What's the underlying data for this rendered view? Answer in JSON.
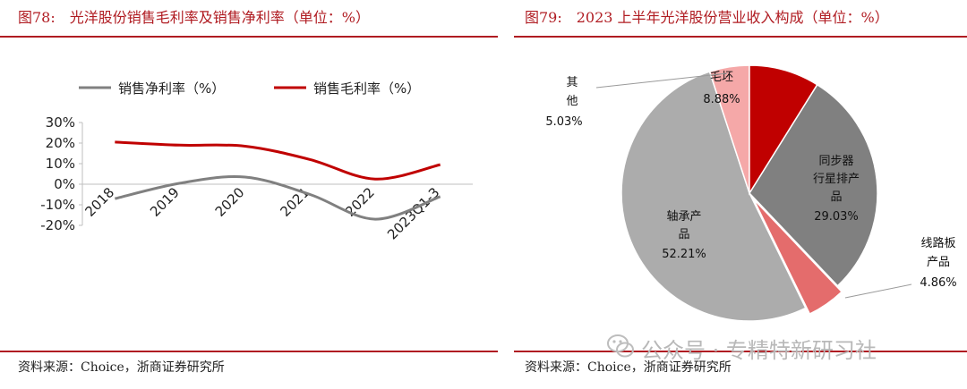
{
  "left": {
    "title": "图78:　光洋股份销售毛利率及销售净利率（单位：%）",
    "source": "资料来源：Choice，浙商证券研究所"
  },
  "right": {
    "title": "图79:　2023 上半年光洋股份营业收入构成（单位：%）",
    "source": "资料来源：Choice，浙商证券研究所"
  },
  "watermark": "公众号 · 专精特新研习社",
  "colors": {
    "accent": "#b01c22",
    "net": "#808080",
    "gross": "#c00000"
  },
  "chart_data": [
    {
      "type": "line",
      "categories": [
        "2018",
        "2019",
        "2020",
        "2021",
        "2022",
        "2023Q1-3"
      ],
      "series": [
        {
          "name": "销售净利率（%）",
          "values": [
            -7,
            0.5,
            3.5,
            -5,
            -17,
            -6
          ],
          "color": "#808080"
        },
        {
          "name": "销售毛利率（%）",
          "values": [
            20.5,
            19,
            18.5,
            12,
            2.5,
            9.5
          ],
          "color": "#c00000"
        }
      ],
      "yticks": [
        "30%",
        "20%",
        "10%",
        "0%",
        "-10%",
        "-20%"
      ],
      "ylim": [
        -20,
        30
      ],
      "legend": "top"
    },
    {
      "type": "pie",
      "slices": [
        {
          "label": "同步器行星排产品",
          "label_lines": [
            "同步器",
            "行星排产",
            "品"
          ],
          "value": 29.03,
          "value_text": "29.03%",
          "color": "#808080",
          "explode": false
        },
        {
          "label": "线路板产品",
          "label_lines": [
            "线路板",
            "产品"
          ],
          "value": 4.86,
          "value_text": "4.86%",
          "color": "#e46c6c",
          "explode": true
        },
        {
          "label": "轴承产品",
          "label_lines": [
            "轴承产",
            "品"
          ],
          "value": 52.21,
          "value_text": "52.21%",
          "color": "#acacac",
          "explode": false
        },
        {
          "label": "其他",
          "label_lines": [
            "其",
            "他"
          ],
          "value": 5.03,
          "value_text": "5.03%",
          "color": "#f5a8a8",
          "explode": false
        },
        {
          "label": "毛坯",
          "label_lines": [
            "毛坯"
          ],
          "value": 8.88,
          "value_text": "8.88%",
          "color": "#c00000",
          "explode": false
        }
      ]
    }
  ]
}
